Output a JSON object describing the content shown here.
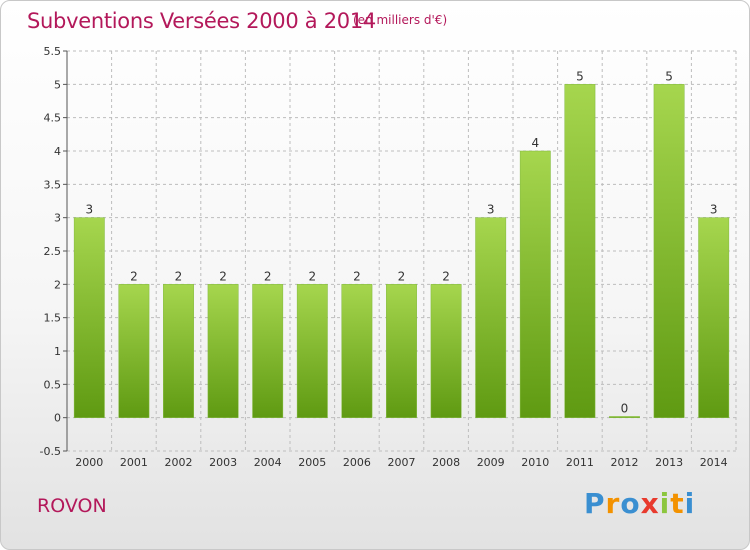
{
  "title": "Subventions Versées 2000 à 2014",
  "unit_note": "(en milliers d'€)",
  "commune": "ROVON",
  "brand": {
    "letters": [
      "P",
      "r",
      "o",
      "x",
      "i",
      "t",
      "i"
    ],
    "colors": [
      "#3a8fd1",
      "#f39200",
      "#3a8fd1",
      "#e83a2d",
      "#8cc63e",
      "#f39200",
      "#3a8fd1"
    ]
  },
  "colors": {
    "title": "#b3185a",
    "bar_light": "#a6d64e",
    "bar_dark": "#5f9a12",
    "grid": "#bdbdbd"
  },
  "chart_data": {
    "type": "bar",
    "categories": [
      "2000",
      "2001",
      "2002",
      "2003",
      "2004",
      "2005",
      "2006",
      "2007",
      "2008",
      "2009",
      "2010",
      "2011",
      "2012",
      "2013",
      "2014"
    ],
    "values": [
      3,
      2,
      2,
      2,
      2,
      2,
      2,
      2,
      2,
      3,
      4,
      5,
      0,
      5,
      3
    ],
    "value_labels": [
      "3",
      "2",
      "2",
      "2",
      "2",
      "2",
      "2",
      "2",
      "2",
      "3",
      "4",
      "5",
      "0",
      "5",
      "3"
    ],
    "yticks": [
      -0.5,
      0,
      0.5,
      1,
      1.5,
      2,
      2.5,
      3,
      3.5,
      4,
      4.5,
      5,
      5.5
    ],
    "ytick_labels": [
      "-0.5",
      "0",
      "0.5",
      "1",
      "1.5",
      "2",
      "2.5",
      "3",
      "3.5",
      "4",
      "4.5",
      "5",
      "5.5"
    ],
    "ylim": [
      -0.5,
      5.5
    ],
    "grid": true,
    "title": "Subventions Versées 2000 à 2014",
    "xlabel": "",
    "ylabel": ""
  }
}
